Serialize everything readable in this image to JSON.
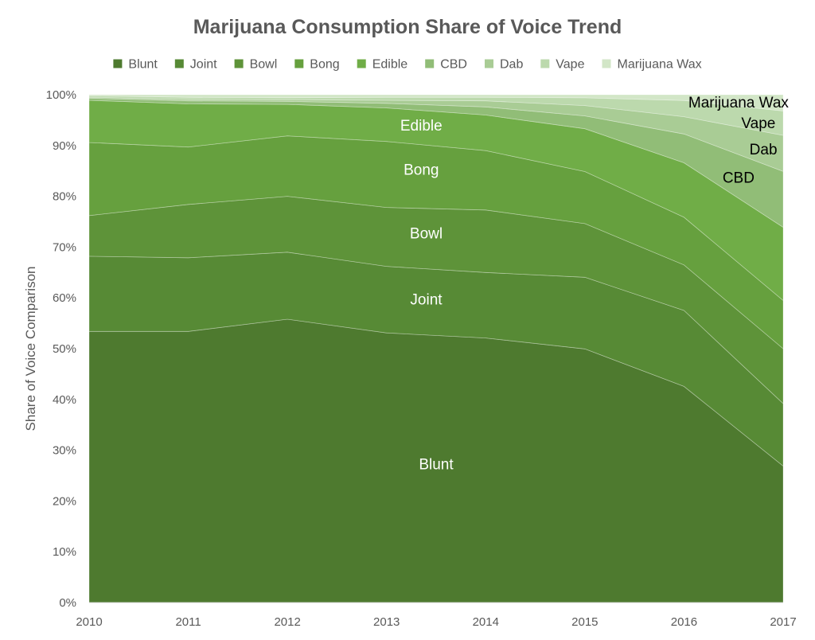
{
  "chart_data": {
    "type": "area",
    "stacked": true,
    "percent": true,
    "title": "Marijuana Consumption Share of Voice Trend",
    "xlabel": "",
    "ylabel": "Share of Voice Comparison",
    "x": [
      "2010",
      "2011",
      "2012",
      "2013",
      "2014",
      "2015",
      "2016",
      "2017"
    ],
    "ylim": [
      0,
      100
    ],
    "yticks": [
      "0%",
      "10%",
      "20%",
      "30%",
      "40%",
      "50%",
      "60%",
      "70%",
      "80%",
      "90%",
      "100%"
    ],
    "legend_position": "top",
    "series": [
      {
        "name": "Blunt",
        "color": "#4e7a2f",
        "label": "Blunt",
        "values": [
          53.4,
          53.4,
          55.8,
          53.1,
          52.1,
          49.2,
          41.3,
          26.9
        ]
      },
      {
        "name": "Joint",
        "color": "#578a35",
        "label": "Joint",
        "values": [
          14.8,
          14.5,
          13.2,
          13.1,
          12.9,
          13.9,
          14.5,
          12.3
        ]
      },
      {
        "name": "Bowl",
        "color": "#5e9339",
        "label": "Bowl",
        "values": [
          8.0,
          10.5,
          11.0,
          11.6,
          12.3,
          10.4,
          8.7,
          10.8
        ]
      },
      {
        "name": "Bong",
        "color": "#66a03e",
        "label": "Bong",
        "values": [
          14.4,
          11.3,
          11.9,
          13.0,
          11.7,
          10.1,
          9.1,
          9.5
        ]
      },
      {
        "name": "Edible",
        "color": "#70ad47",
        "label": "Edible",
        "values": [
          8.3,
          8.5,
          6.2,
          6.6,
          7.0,
          8.3,
          10.4,
          14.4
        ]
      },
      {
        "name": "CBD",
        "color": "#91bd77",
        "label": "CBD",
        "values": [
          0.4,
          0.6,
          0.6,
          0.9,
          1.6,
          2.5,
          5.5,
          11.0
        ]
      },
      {
        "name": "Dab",
        "color": "#a9cc95",
        "label": "Dab",
        "values": [
          0.2,
          0.3,
          0.3,
          0.6,
          1.2,
          2.0,
          3.3,
          7.1
        ]
      },
      {
        "name": "Vape",
        "color": "#bcd9ad",
        "label": "Vape",
        "values": [
          0.3,
          0.4,
          0.4,
          0.6,
          0.7,
          1.5,
          3.1,
          4.8
        ]
      },
      {
        "name": "Marijuana Wax",
        "color": "#d2e6c7",
        "label": "Marijuana Wax",
        "values": [
          0.2,
          0.5,
          0.6,
          0.5,
          0.5,
          0.6,
          1.1,
          3.2
        ]
      }
    ]
  }
}
